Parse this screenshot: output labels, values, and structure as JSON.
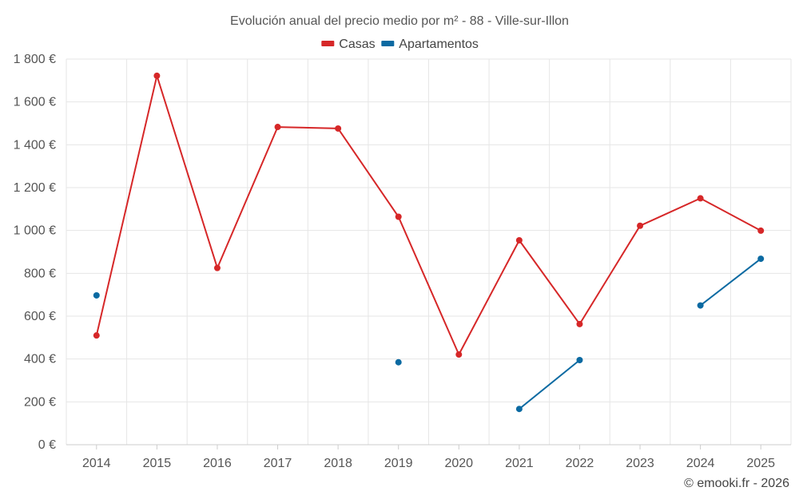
{
  "chart_data": {
    "type": "line",
    "title": "Evolución anual del precio medio por m² - 88 - Ville-sur-Illon",
    "categories": [
      "2014",
      "2015",
      "2016",
      "2017",
      "2018",
      "2019",
      "2020",
      "2021",
      "2022",
      "2023",
      "2024",
      "2025"
    ],
    "ylim": [
      0,
      1800
    ],
    "yticks": [
      0,
      200,
      400,
      600,
      800,
      1000,
      1200,
      1400,
      1600,
      1800
    ],
    "ytick_labels": [
      "0 €",
      "200 €",
      "400 €",
      "600 €",
      "800 €",
      "1 000 €",
      "1 200 €",
      "1 400 €",
      "1 600 €",
      "1 800 €"
    ],
    "grid": true,
    "legend_position": "top-center",
    "series": [
      {
        "name": "Casas",
        "color": "#d62728",
        "values": [
          510,
          1722,
          825,
          1483,
          1476,
          1064,
          421,
          954,
          563,
          1022,
          1150,
          999
        ]
      },
      {
        "name": "Apartamentos",
        "color": "#0b6aa2",
        "values": [
          697,
          null,
          null,
          null,
          null,
          385,
          null,
          167,
          395,
          null,
          650,
          868
        ]
      }
    ],
    "credit": "© emooki.fr - 2026"
  }
}
